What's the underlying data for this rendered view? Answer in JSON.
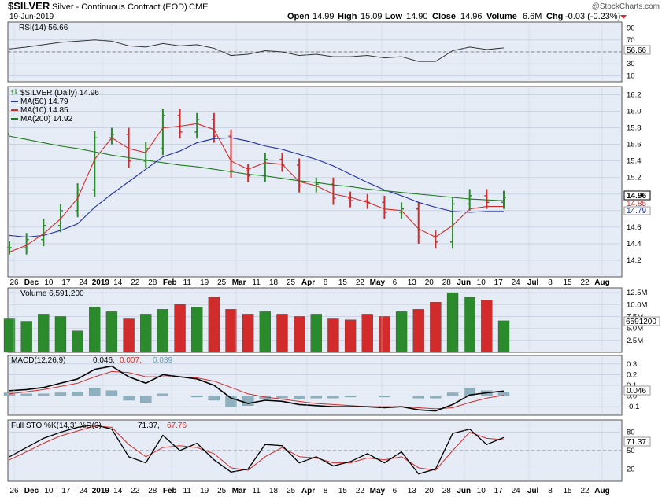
{
  "header": {
    "symbol": "$SILVER",
    "name": "Silver - Continuous Contract (EOD)",
    "exchange": "CME",
    "date": "19-Jun-2019",
    "watermark": "@StockCharts.com",
    "open_label": "Open",
    "open": "14.99",
    "high_label": "High",
    "high": "15.09",
    "low_label": "Low",
    "low": "14.90",
    "close_label": "Close",
    "close": "14.96",
    "volume_label": "Volume",
    "volume": "6.6M",
    "chg_label": "Chg",
    "chg": "-0.03 (-0.23%)"
  },
  "colors": {
    "panel_bg": "#e6ecf6",
    "up": "#2b8a2b",
    "down": "#d22b2b",
    "ma50": "#1f2fa0",
    "ma10": "#d22b2b",
    "ma200": "#1f7a1f",
    "hist": "#8fb1bf"
  },
  "rsi_panel": {
    "label": "RSI(14) 56.66",
    "last": "56.66",
    "ticks": [
      "90",
      "70",
      "50",
      "30",
      "10"
    ]
  },
  "price_panel": {
    "label": "$SILVER (Daily) 14.96",
    "legend": [
      {
        "text": "MA(50) 14.79",
        "color": "#1f2fa0"
      },
      {
        "text": "MA(10) 14.85",
        "color": "#d22b2b"
      },
      {
        "text": "MA(200) 14.92",
        "color": "#1f7a1f"
      }
    ],
    "ticks": [
      "16.2",
      "16.0",
      "15.8",
      "15.6",
      "15.4",
      "15.2",
      "15.0",
      "14.8",
      "14.6",
      "14.4",
      "14.2"
    ],
    "tags": [
      "14.96",
      "14.85",
      "14.79"
    ]
  },
  "x_axis_labels": [
    "26",
    "Dec",
    "10",
    "17",
    "24",
    "2019",
    "14",
    "22",
    "28",
    "Feb",
    "11",
    "19",
    "25",
    "Mar",
    "11",
    "18",
    "25",
    "Apr",
    "8",
    "15",
    "22",
    "May",
    "6",
    "13",
    "20",
    "28",
    "Jun",
    "10",
    "17",
    "24",
    "Jul",
    "8",
    "15",
    "22",
    "Aug"
  ],
  "volume_panel": {
    "label": "Volume 6,591,200",
    "last": "6591200",
    "ticks": [
      "12.5M",
      "10.0M",
      "7.5M",
      "5.0M",
      "2.5M"
    ]
  },
  "macd_panel": {
    "label_prefix": "MACD(12,26,9)",
    "macd": "0.046,",
    "signal": "0.007,",
    "hist": "0.039",
    "last": "0.046",
    "ticks": [
      "0.3",
      "0.2",
      "0.1",
      "0.0",
      "-0.1"
    ]
  },
  "sto_panel": {
    "label_prefix": "Full STO %K(14,3) %D(3)",
    "k": "71.37,",
    "d": "67.76",
    "last": "71.37",
    "ticks": [
      "80",
      "50",
      "20"
    ]
  },
  "chart_data": {
    "type": "line",
    "title": "$SILVER Silver - Continuous Contract (EOD) CME",
    "x": [
      "Nov-26",
      "Dec-03",
      "Dec-10",
      "Dec-17",
      "Dec-24",
      "Jan-02",
      "Jan-14",
      "Jan-22",
      "Jan-28",
      "Feb-04",
      "Feb-11",
      "Feb-19",
      "Feb-25",
      "Mar-04",
      "Mar-11",
      "Mar-18",
      "Mar-25",
      "Apr-01",
      "Apr-08",
      "Apr-15",
      "Apr-22",
      "Apr-29",
      "May-06",
      "May-13",
      "May-20",
      "May-28",
      "Jun-03",
      "Jun-10",
      "Jun-17",
      "Jun-19"
    ],
    "series": [
      {
        "name": "$SILVER (Daily)",
        "values": [
          14.35,
          14.45,
          14.62,
          14.8,
          15.05,
          15.68,
          15.72,
          15.4,
          15.55,
          15.95,
          15.75,
          15.9,
          15.7,
          15.28,
          15.22,
          15.42,
          15.35,
          15.1,
          15.12,
          14.95,
          14.92,
          14.9,
          14.78,
          14.82,
          14.48,
          14.42,
          14.88,
          14.98,
          14.9,
          14.96
        ]
      },
      {
        "name": "MA(50)",
        "values": [
          14.5,
          14.48,
          14.5,
          14.56,
          14.64,
          14.84,
          15.0,
          15.15,
          15.3,
          15.45,
          15.52,
          15.62,
          15.67,
          15.68,
          15.64,
          15.58,
          15.54,
          15.48,
          15.42,
          15.34,
          15.24,
          15.14,
          15.05,
          14.98,
          14.9,
          14.84,
          14.79,
          14.78,
          14.79,
          14.79
        ]
      },
      {
        "name": "MA(10)",
        "values": [
          14.3,
          14.38,
          14.52,
          14.7,
          14.95,
          15.42,
          15.68,
          15.55,
          15.5,
          15.8,
          15.82,
          15.85,
          15.78,
          15.4,
          15.3,
          15.38,
          15.36,
          15.15,
          15.1,
          15.0,
          14.96,
          14.9,
          14.82,
          14.8,
          14.58,
          14.48,
          14.62,
          14.82,
          14.85,
          14.85
        ]
      },
      {
        "name": "MA(200)",
        "values": [
          15.7,
          15.66,
          15.62,
          15.58,
          15.55,
          15.51,
          15.47,
          15.44,
          15.41,
          15.38,
          15.35,
          15.33,
          15.3,
          15.27,
          15.24,
          15.22,
          15.19,
          15.16,
          15.14,
          15.11,
          15.09,
          15.06,
          15.04,
          15.02,
          15.0,
          14.98,
          14.96,
          14.94,
          14.93,
          14.92
        ]
      }
    ],
    "ylim": [
      14.0,
      16.3
    ],
    "volume": [
      7.0,
      6.5,
      8.0,
      7.5,
      4.5,
      9.5,
      8.5,
      7.0,
      8.0,
      9.0,
      10.0,
      9.5,
      11.5,
      9.0,
      8.0,
      8.5,
      8.0,
      7.5,
      8.0,
      7.0,
      6.8,
      8.0,
      7.5,
      8.5,
      9.0,
      10.5,
      12.5,
      11.5,
      11.0,
      6.6
    ],
    "rsi": [
      55,
      58,
      62,
      66,
      68,
      70,
      68,
      60,
      58,
      64,
      60,
      62,
      56,
      44,
      46,
      52,
      50,
      44,
      46,
      42,
      42,
      44,
      40,
      42,
      34,
      34,
      52,
      58,
      54,
      56.66
    ],
    "macd": [
      0.05,
      0.06,
      0.08,
      0.12,
      0.16,
      0.25,
      0.28,
      0.18,
      0.12,
      0.2,
      0.18,
      0.16,
      0.1,
      -0.02,
      -0.07,
      -0.04,
      -0.05,
      -0.08,
      -0.09,
      -0.1,
      -0.1,
      -0.1,
      -0.11,
      -0.1,
      -0.13,
      -0.14,
      -0.08,
      0.01,
      0.03,
      0.046
    ],
    "macd_signal": [
      0.02,
      0.04,
      0.06,
      0.09,
      0.12,
      0.18,
      0.23,
      0.22,
      0.18,
      0.18,
      0.18,
      0.17,
      0.14,
      0.08,
      0.02,
      -0.01,
      -0.03,
      -0.05,
      -0.07,
      -0.08,
      -0.09,
      -0.1,
      -0.1,
      -0.1,
      -0.11,
      -0.12,
      -0.11,
      -0.06,
      -0.02,
      0.007
    ],
    "sto_k": [
      40,
      55,
      70,
      80,
      88,
      92,
      85,
      40,
      30,
      75,
      50,
      62,
      35,
      15,
      20,
      60,
      58,
      30,
      40,
      25,
      32,
      45,
      30,
      48,
      12,
      20,
      78,
      85,
      60,
      71.37
    ],
    "sto_d": [
      35,
      48,
      62,
      74,
      82,
      90,
      88,
      60,
      40,
      55,
      58,
      55,
      45,
      22,
      18,
      40,
      55,
      40,
      38,
      30,
      30,
      38,
      35,
      40,
      22,
      18,
      50,
      80,
      70,
      67.76
    ],
    "rsi_range": [
      0,
      100
    ],
    "macd_range": [
      -0.18,
      0.38
    ],
    "sto_range": [
      0,
      100
    ],
    "volume_range": [
      0,
      13.5
    ]
  }
}
